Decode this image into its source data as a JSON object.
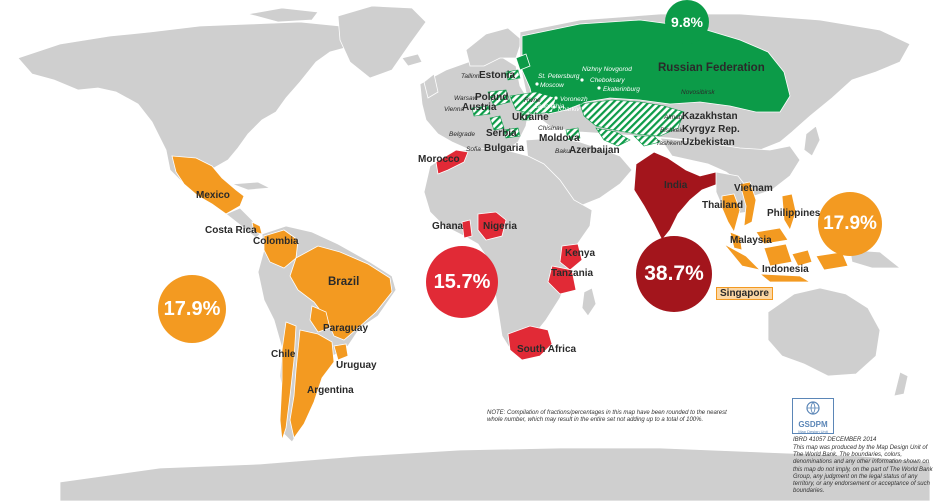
{
  "colors": {
    "land": "#cfcfcf",
    "latin_america_asia": "#f39a21",
    "africa": "#e12a36",
    "south_asia": "#a3151c",
    "europe_central_asia": "#0c9b48"
  },
  "bubbles": {
    "latin_america": "17.9%",
    "africa": "15.7%",
    "south_asia": "38.7%",
    "east_asia": "17.9%",
    "europe_central_asia": "9.8%"
  },
  "countries": {
    "mexico": "Mexico",
    "costa_rica": "Costa Rica",
    "colombia": "Colombia",
    "brazil": "Brazil",
    "paraguay": "Paraguay",
    "chile": "Chile",
    "uruguay": "Uruguay",
    "argentina": "Argentina",
    "morocco": "Morocco",
    "ghana": "Ghana",
    "nigeria": "Nigeria",
    "kenya": "Kenya",
    "tanzania": "Tanzania",
    "south_africa": "South Africa",
    "india": "India",
    "vietnam": "Vietnam",
    "thailand": "Thailand",
    "philippines": "Philippines",
    "malaysia": "Malaysia",
    "indonesia": "Indonesia",
    "singapore": "Singapore",
    "russia": "Russian Federation",
    "estonia": "Estonia",
    "poland": "Poland",
    "austria": "Austria",
    "ukraine": "Ukraine",
    "serbia": "Serbia",
    "bulgaria": "Bulgaria",
    "moldova": "Moldova",
    "azerbaijan": "Azerbaijan",
    "kazakhstan": "Kazakhstan",
    "kyrgyz": "Kyrgyz Rep.",
    "uzbekistan": "Uzbekistan"
  },
  "cities": {
    "tallinn": "Tallinn",
    "st_petersburg": "St. Petersburg",
    "moscow": "Moscow",
    "nizhny_novgorod": "Nizhny Novgorod",
    "cheboksary": "Cheboksary",
    "ekaterinburg": "Ekaterinburg",
    "novosibirsk": "Novosibirsk",
    "warsaw": "Warsaw",
    "vienna": "Vienna",
    "rivne": "Rivne",
    "voronezh": "Voronezh",
    "zaporizhia": "Zaporizhia",
    "kharkiv": "Kharkiv",
    "belgrade": "Belgrade",
    "chisinau": "Chisinau",
    "sofia": "Sofia",
    "almaty": "Almaty",
    "bishkek": "Bishkek",
    "tashkent": "Tashkent",
    "baku": "Baku"
  },
  "note": "NOTE: Compilation of fractions/percentages in this map have been rounded to the nearest whole number, which may result in the entire set not adding up to a total of 100%.",
  "logo": {
    "name": "GSDPM",
    "subtitle": "Map Design Unit"
  },
  "credit": {
    "id_line": "IBRD 41057  DECEMBER 2014",
    "text": "This map was produced by the Map Design Unit of The World Bank. The boundaries, colors, denominations and any other information shown on this map do not imply, on the part of The World Bank Group, any judgment on the legal status of any territory, or any endorsement or acceptance of such boundaries."
  }
}
